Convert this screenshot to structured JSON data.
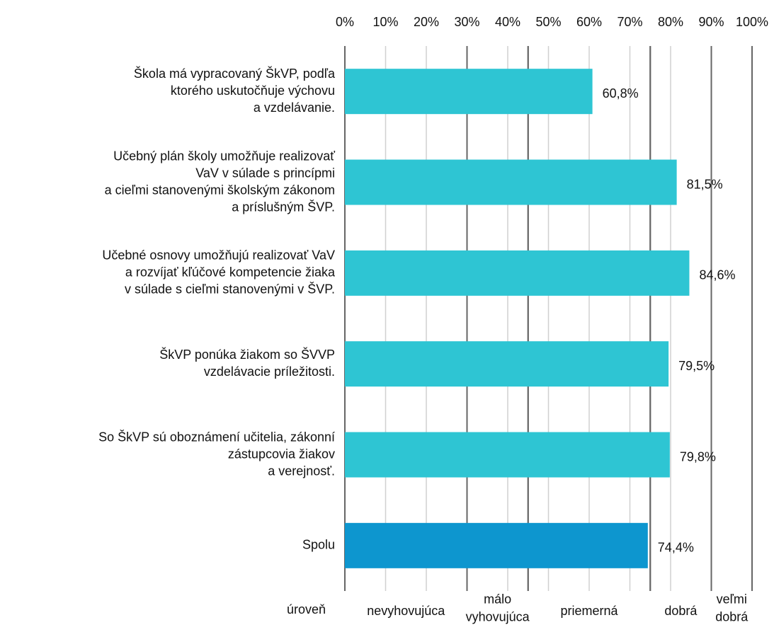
{
  "chart_data": {
    "type": "bar",
    "orientation": "horizontal",
    "categories": [
      [
        "Škola má vypracovaný ŠkVP, podľa",
        "ktorého uskutočňuje výchovu",
        "a vzdelávanie."
      ],
      [
        "Učebný plán školy umožňuje realizovať",
        "VaV v súlade s princípmi",
        "a cieľmi stanovenými školským zákonom",
        "a príslušným ŠVP."
      ],
      [
        "Učebné osnovy umožňujú realizovať VaV",
        "a rozvíjať kľúčové kompetencie žiaka",
        "v súlade s cieľmi stanovenými v ŠVP."
      ],
      [
        "ŠkVP ponúka žiakom so ŠVVP",
        "vzdelávacie príležitosti."
      ],
      [
        "So ŠkVP sú oboznámení učitelia, zákonní",
        "zástupcovia žiakov",
        "a verejnosť."
      ],
      [
        "Spolu"
      ]
    ],
    "values": [
      60.8,
      81.5,
      84.6,
      79.5,
      79.8,
      74.4
    ],
    "value_labels": [
      "60,8%",
      "81,5%",
      "84,6%",
      "79,5%",
      "79,8%",
      "74,4%"
    ],
    "colors": [
      "#2ec5d3",
      "#2ec5d3",
      "#2ec5d3",
      "#2ec5d3",
      "#2ec5d3",
      "#0d96cf"
    ],
    "xlim": [
      0,
      100
    ],
    "xticks": [
      {
        "value": 0,
        "label": "0%"
      },
      {
        "value": 10,
        "label": "10%"
      },
      {
        "value": 20,
        "label": "20%"
      },
      {
        "value": 30,
        "label": "30%"
      },
      {
        "value": 40,
        "label": "40%"
      },
      {
        "value": 50,
        "label": "50%"
      },
      {
        "value": 60,
        "label": "60%"
      },
      {
        "value": 70,
        "label": "70%"
      },
      {
        "value": 80,
        "label": "80%"
      },
      {
        "value": 90,
        "label": "90%"
      },
      {
        "value": 100,
        "label": "100%"
      }
    ],
    "grid": true,
    "level_title": "úroveň",
    "levels": [
      {
        "label": [
          "nevyhovujúca"
        ],
        "from": 0,
        "to": 30
      },
      {
        "label": [
          "málo",
          "vyhovujúca"
        ],
        "from": 30,
        "to": 45
      },
      {
        "label": [
          "priemerná"
        ],
        "from": 45,
        "to": 75
      },
      {
        "label": [
          "dobrá"
        ],
        "from": 75,
        "to": 90
      },
      {
        "label": [
          "veľmi",
          "dobrá"
        ],
        "from": 90,
        "to": 100
      }
    ]
  }
}
